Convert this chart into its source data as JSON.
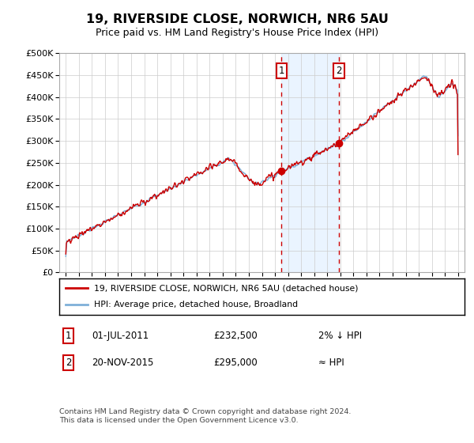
{
  "title": "19, RIVERSIDE CLOSE, NORWICH, NR6 5AU",
  "subtitle": "Price paid vs. HM Land Registry's House Price Index (HPI)",
  "legend_line1": "19, RIVERSIDE CLOSE, NORWICH, NR6 5AU (detached house)",
  "legend_line2": "HPI: Average price, detached house, Broadland",
  "annotation1_date": "01-JUL-2011",
  "annotation1_price": "£232,500",
  "annotation1_hpi": "2% ↓ HPI",
  "annotation2_date": "20-NOV-2015",
  "annotation2_price": "£295,000",
  "annotation2_hpi": "≈ HPI",
  "footer": "Contains HM Land Registry data © Crown copyright and database right 2024.\nThis data is licensed under the Open Government Licence v3.0.",
  "hpi_color": "#7fb0d8",
  "price_color": "#cc0000",
  "shaded_color": "#ddeeff",
  "ylim": [
    0,
    500000
  ],
  "yticks": [
    0,
    50000,
    100000,
    150000,
    200000,
    250000,
    300000,
    350000,
    400000,
    450000,
    500000
  ],
  "xlim_start": 1994.5,
  "xlim_end": 2025.5,
  "sale1_year": 2011.5,
  "sale1_price": 232500,
  "sale2_year": 2015.9,
  "sale2_price": 295000,
  "xticks": [
    1995,
    1996,
    1997,
    1998,
    1999,
    2000,
    2001,
    2002,
    2003,
    2004,
    2005,
    2006,
    2007,
    2008,
    2009,
    2010,
    2011,
    2012,
    2013,
    2014,
    2015,
    2016,
    2017,
    2018,
    2019,
    2020,
    2021,
    2022,
    2023,
    2024,
    2025
  ]
}
